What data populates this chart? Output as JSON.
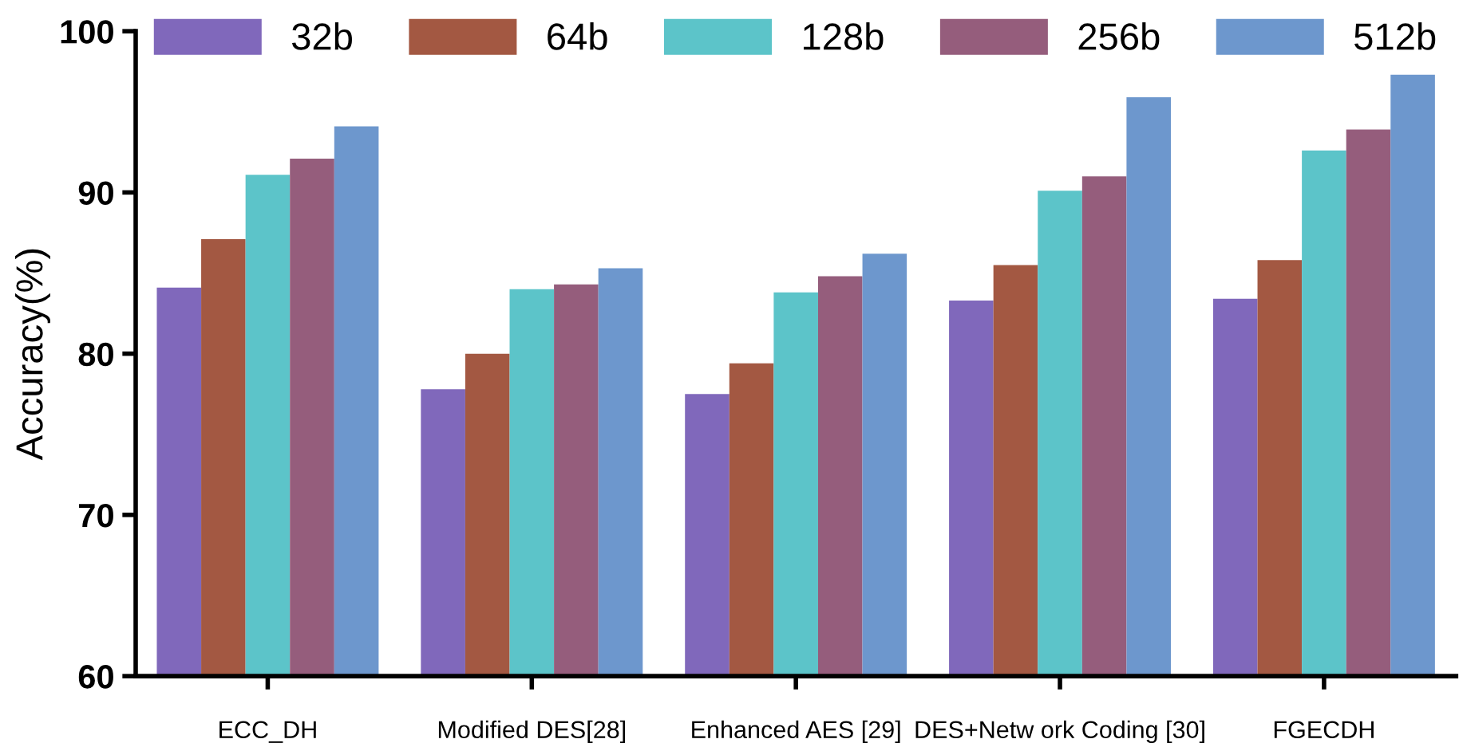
{
  "chart_data": {
    "type": "bar",
    "ylabel": "Accuracy(%)",
    "categories": [
      "ECC_DH",
      "Modified DES[28]",
      "Enhanced AES [29]",
      "DES+Netw ork Coding [30]",
      "FGECDH"
    ],
    "series": [
      {
        "name": "32b",
        "color": "#8068bb",
        "values": [
          84.1,
          77.8,
          77.5,
          83.3,
          83.4
        ]
      },
      {
        "name": "64b",
        "color": "#a35842",
        "values": [
          87.1,
          80.0,
          79.4,
          85.5,
          85.8
        ]
      },
      {
        "name": "128b",
        "color": "#5cc4c9",
        "values": [
          91.1,
          84.0,
          83.8,
          90.1,
          92.6
        ]
      },
      {
        "name": "256b",
        "color": "#955d7c",
        "values": [
          92.1,
          84.3,
          84.8,
          91.0,
          93.9
        ]
      },
      {
        "name": "512b",
        "color": "#6d97cd",
        "values": [
          94.1,
          85.3,
          86.2,
          95.9,
          97.3
        ]
      }
    ],
    "ylim": [
      60,
      100
    ],
    "yticks": [
      60,
      70,
      80,
      90,
      100
    ],
    "grid": false,
    "legend": "top"
  }
}
